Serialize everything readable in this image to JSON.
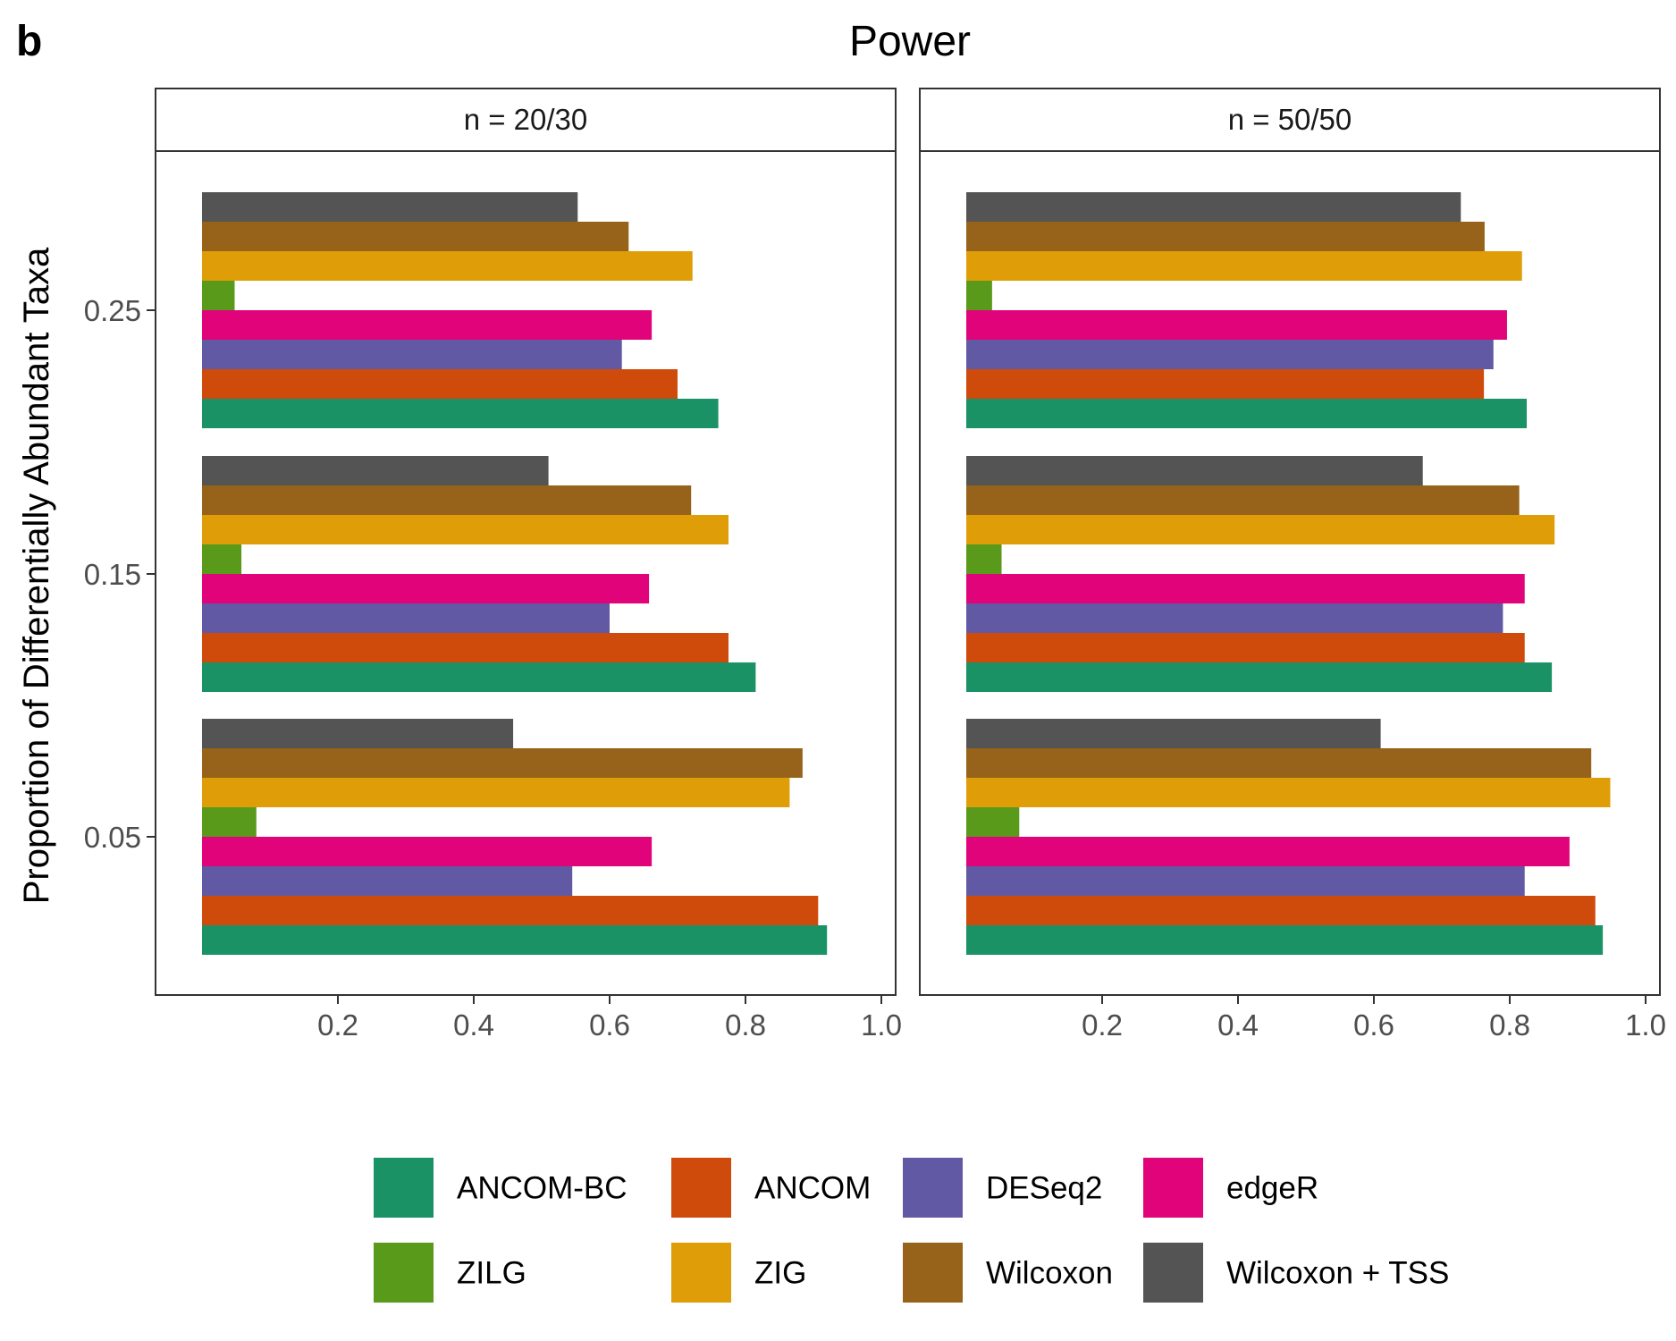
{
  "figure": {
    "panel_label": "b",
    "title": "Power"
  },
  "chart_data": {
    "type": "bar",
    "orientation": "horizontal",
    "title": "Power",
    "xlabel": "",
    "ylabel": "Proportion of Differentially Abundant Taxa",
    "categories": [
      "0.05",
      "0.15",
      "0.25"
    ],
    "x_ticks": [
      "0.2",
      "0.4",
      "0.6",
      "0.8",
      "1.0"
    ],
    "xlim": [
      0,
      1.05
    ],
    "grid": false,
    "legend_position": "bottom",
    "series_order": [
      "ANCOM-BC",
      "ANCOM",
      "DESeq2",
      "edgeR",
      "ZILG",
      "ZIG",
      "Wilcoxon",
      "Wilcoxon + TSS"
    ],
    "colors": {
      "ANCOM-BC": "#1b9166",
      "ANCOM": "#cf4b0b",
      "DESeq2": "#6159a3",
      "edgeR": "#e0037a",
      "ZILG": "#5a9a1b",
      "ZIG": "#df9d07",
      "Wilcoxon": "#976219",
      "Wilcoxon + TSS": "#545454"
    },
    "panels": [
      {
        "label": "n = 20/30",
        "series": [
          {
            "name": "ANCOM-BC",
            "values": [
              0.92,
              0.815,
              0.76
            ]
          },
          {
            "name": "ANCOM",
            "values": [
              0.907,
              0.775,
              0.7
            ]
          },
          {
            "name": "DESeq2",
            "values": [
              0.545,
              0.6,
              0.618
            ]
          },
          {
            "name": "edgeR",
            "values": [
              0.662,
              0.658,
              0.662
            ]
          },
          {
            "name": "ZILG",
            "values": [
              0.08,
              0.058,
              0.048
            ]
          },
          {
            "name": "ZIG",
            "values": [
              0.865,
              0.775,
              0.722
            ]
          },
          {
            "name": "Wilcoxon",
            "values": [
              0.884,
              0.72,
              0.628
            ]
          },
          {
            "name": "Wilcoxon + TSS",
            "values": [
              0.458,
              0.51,
              0.553
            ]
          }
        ]
      },
      {
        "label": "n = 50/50",
        "series": [
          {
            "name": "ANCOM-BC",
            "values": [
              0.937,
              0.862,
              0.825
            ]
          },
          {
            "name": "ANCOM",
            "values": [
              0.926,
              0.822,
              0.762
            ]
          },
          {
            "name": "DESeq2",
            "values": [
              0.822,
              0.79,
              0.776
            ]
          },
          {
            "name": "edgeR",
            "values": [
              0.888,
              0.822,
              0.796
            ]
          },
          {
            "name": "ZILG",
            "values": [
              0.078,
              0.052,
              0.038
            ]
          },
          {
            "name": "ZIG",
            "values": [
              0.948,
              0.866,
              0.818
            ]
          },
          {
            "name": "Wilcoxon",
            "values": [
              0.92,
              0.814,
              0.763
            ]
          },
          {
            "name": "Wilcoxon + TSS",
            "values": [
              0.61,
              0.672,
              0.728
            ]
          }
        ]
      }
    ]
  },
  "legend": {
    "items": [
      {
        "name": "ANCOM-BC",
        "color": "#1b9166"
      },
      {
        "name": "ANCOM",
        "color": "#cf4b0b"
      },
      {
        "name": "DESeq2",
        "color": "#6159a3"
      },
      {
        "name": "edgeR",
        "color": "#e0037a"
      },
      {
        "name": "ZILG",
        "color": "#5a9a1b"
      },
      {
        "name": "ZIG",
        "color": "#df9d07"
      },
      {
        "name": "Wilcoxon",
        "color": "#976219"
      },
      {
        "name": "Wilcoxon + TSS",
        "color": "#545454"
      }
    ]
  }
}
